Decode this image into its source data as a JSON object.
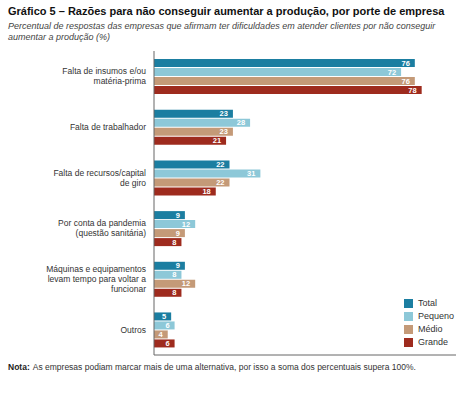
{
  "chart_data": {
    "type": "bar",
    "orientation": "horizontal",
    "title": "Gráfico 5 – Razões para não conseguir aumentar a produção, por porte de empresa",
    "subtitle": "Percentual de respostas das empresas que afirmam ter dificuldades em atender clientes por não conseguir aumentar a produção (%)",
    "annotations": [
      "Nota:",
      "As empresas podiam marcar mais de uma alternativa, por isso a soma dos percentuais supera 100%."
    ],
    "categories": [
      "Falta de insumos e/ou matéria-prima",
      "Falta de trabalhador",
      "Falta de recursos/capital de giro",
      "Por conta da pandemia (questão sanitária)",
      "Máquinas e equipamentos levam tempo para voltar a funcionar",
      "Outros"
    ],
    "series": [
      {
        "name": "Total",
        "color": "#1b7ea1",
        "values": [
          76,
          23,
          22,
          9,
          9,
          5
        ]
      },
      {
        "name": "Pequeno",
        "color": "#8dc8d8",
        "values": [
          72,
          28,
          31,
          12,
          8,
          6
        ]
      },
      {
        "name": "Médio",
        "color": "#c49a78",
        "values": [
          76,
          23,
          22,
          9,
          12,
          4
        ]
      },
      {
        "name": "Grande",
        "color": "#9e2b1e",
        "values": [
          78,
          21,
          18,
          8,
          8,
          6
        ]
      }
    ],
    "xlim": [
      0,
      88
    ],
    "data_labels": true,
    "tick_labels": "y",
    "grid": false,
    "legend": "lower right"
  }
}
